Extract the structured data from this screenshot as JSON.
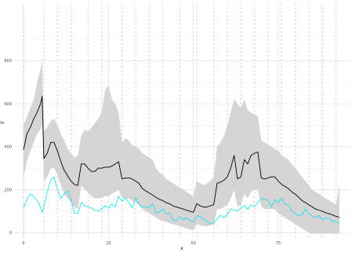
{
  "chart_data": {
    "type": "line",
    "xlabel": "x",
    "ylabel": "y",
    "xlim": [
      -3,
      96
    ],
    "ylim": [
      -25,
      1065
    ],
    "grid": true,
    "x_ticks": [
      0,
      25,
      50,
      75
    ],
    "y_ticks": [
      0,
      200,
      400,
      600,
      800
    ],
    "x_tick_labels": [
      "0",
      "25",
      "50",
      "75"
    ],
    "y_tick_labels": [
      "0",
      "200",
      "400",
      "600",
      "800"
    ],
    "colors": {
      "band": "#d4d2d3",
      "main_line": "#000000",
      "second_line": "#00e5ee",
      "vlines": "#f4a6b8",
      "grid_major": "#dcdcdc",
      "grid_minor": "#efefef",
      "axis_text": "#4d4d4d"
    },
    "vertical_lines_x": [
      0,
      6,
      10,
      14,
      19,
      23,
      29,
      33,
      37,
      41,
      46,
      51,
      56,
      60,
      64,
      68,
      72,
      76,
      80,
      84,
      88,
      92
    ],
    "x": [
      0,
      1,
      2,
      3,
      4,
      5,
      5.5,
      6,
      7,
      8,
      9,
      10,
      11,
      12,
      13,
      14,
      15,
      16,
      17,
      18,
      19,
      20,
      21,
      22,
      23,
      24,
      25,
      26,
      27,
      28,
      29,
      30,
      31,
      32,
      33,
      34,
      35,
      36,
      37,
      38,
      39,
      40,
      41,
      42,
      43,
      44,
      45,
      46,
      47,
      48,
      49,
      50,
      51,
      52,
      53,
      54,
      55,
      56,
      57,
      58,
      59,
      60,
      61,
      62,
      63,
      64,
      65,
      66,
      67,
      68,
      69,
      70,
      71,
      72,
      73,
      74,
      75,
      76,
      77,
      78,
      79,
      80,
      81,
      82,
      83,
      84,
      85,
      86,
      87,
      88,
      89,
      90,
      91,
      92,
      93
    ],
    "series": [
      {
        "values": [
          385,
          460,
          490,
          530,
          560,
          600,
          635,
          345,
          370,
          420,
          420,
          380,
          330,
          290,
          265,
          240,
          225,
          220,
          320,
          320,
          300,
          285,
          285,
          300,
          300,
          305,
          305,
          310,
          320,
          330,
          250,
          255,
          255,
          250,
          240,
          230,
          205,
          195,
          185,
          175,
          165,
          155,
          150,
          140,
          135,
          125,
          120,
          115,
          110,
          105,
          100,
          95,
          135,
          125,
          120,
          120,
          125,
          130,
          230,
          235,
          245,
          260,
          300,
          360,
          250,
          260,
          340,
          320,
          360,
          370,
          375,
          255,
          250,
          255,
          260,
          260,
          240,
          225,
          215,
          205,
          190,
          180,
          165,
          150,
          140,
          130,
          120,
          110,
          105,
          100,
          92,
          88,
          83,
          76,
          72
        ]
      },
      {
        "values": [
          115,
          155,
          180,
          170,
          150,
          120,
          95,
          120,
          190,
          245,
          260,
          200,
          160,
          180,
          195,
          155,
          90,
          90,
          140,
          125,
          120,
          115,
          105,
          100,
          110,
          125,
          115,
          135,
          120,
          170,
          145,
          165,
          140,
          115,
          165,
          130,
          120,
          120,
          115,
          135,
          95,
          95,
          110,
          90,
          90,
          60,
          55,
          75,
          60,
          70,
          55,
          50,
          80,
          75,
          60,
          55,
          40,
          45,
          65,
          80,
          70,
          85,
          110,
          105,
          100,
          115,
          125,
          110,
          130,
          120,
          140,
          160,
          155,
          150,
          120,
          155,
          140,
          160,
          130,
          130,
          100,
          90,
          80,
          85,
          110,
          90,
          75,
          70,
          80,
          60,
          70,
          65,
          55,
          50,
          45
        ]
      }
    ],
    "band": {
      "upper": [
        500,
        540,
        580,
        620,
        700,
        760,
        800,
        470,
        490,
        520,
        530,
        500,
        460,
        430,
        390,
        370,
        350,
        360,
        450,
        480,
        470,
        490,
        510,
        530,
        560,
        660,
        690,
        620,
        600,
        560,
        420,
        440,
        430,
        410,
        400,
        390,
        370,
        360,
        350,
        340,
        300,
        280,
        270,
        250,
        240,
        230,
        220,
        210,
        200,
        190,
        180,
        170,
        240,
        230,
        220,
        230,
        240,
        260,
        400,
        420,
        450,
        500,
        560,
        620,
        600,
        580,
        620,
        570,
        560,
        550,
        540,
        430,
        420,
        410,
        400,
        390,
        380,
        360,
        350,
        340,
        320,
        300,
        280,
        260,
        240,
        220,
        200,
        190,
        180,
        170,
        160,
        150,
        140,
        130,
        220
      ],
      "lower": [
        260,
        330,
        380,
        420,
        460,
        480,
        520,
        240,
        260,
        300,
        300,
        270,
        220,
        180,
        160,
        140,
        120,
        110,
        220,
        200,
        190,
        170,
        160,
        160,
        160,
        170,
        170,
        180,
        190,
        200,
        160,
        160,
        160,
        150,
        140,
        130,
        110,
        100,
        90,
        80,
        70,
        60,
        55,
        50,
        45,
        40,
        35,
        30,
        25,
        20,
        15,
        10,
        40,
        35,
        30,
        30,
        35,
        40,
        110,
        110,
        120,
        130,
        160,
        200,
        120,
        130,
        180,
        160,
        190,
        200,
        200,
        120,
        110,
        110,
        110,
        110,
        90,
        80,
        70,
        60,
        50,
        40,
        30,
        20,
        10,
        0,
        -5,
        -5,
        -5,
        -5,
        -5,
        -5,
        -5,
        -5,
        -5
      ]
    }
  }
}
